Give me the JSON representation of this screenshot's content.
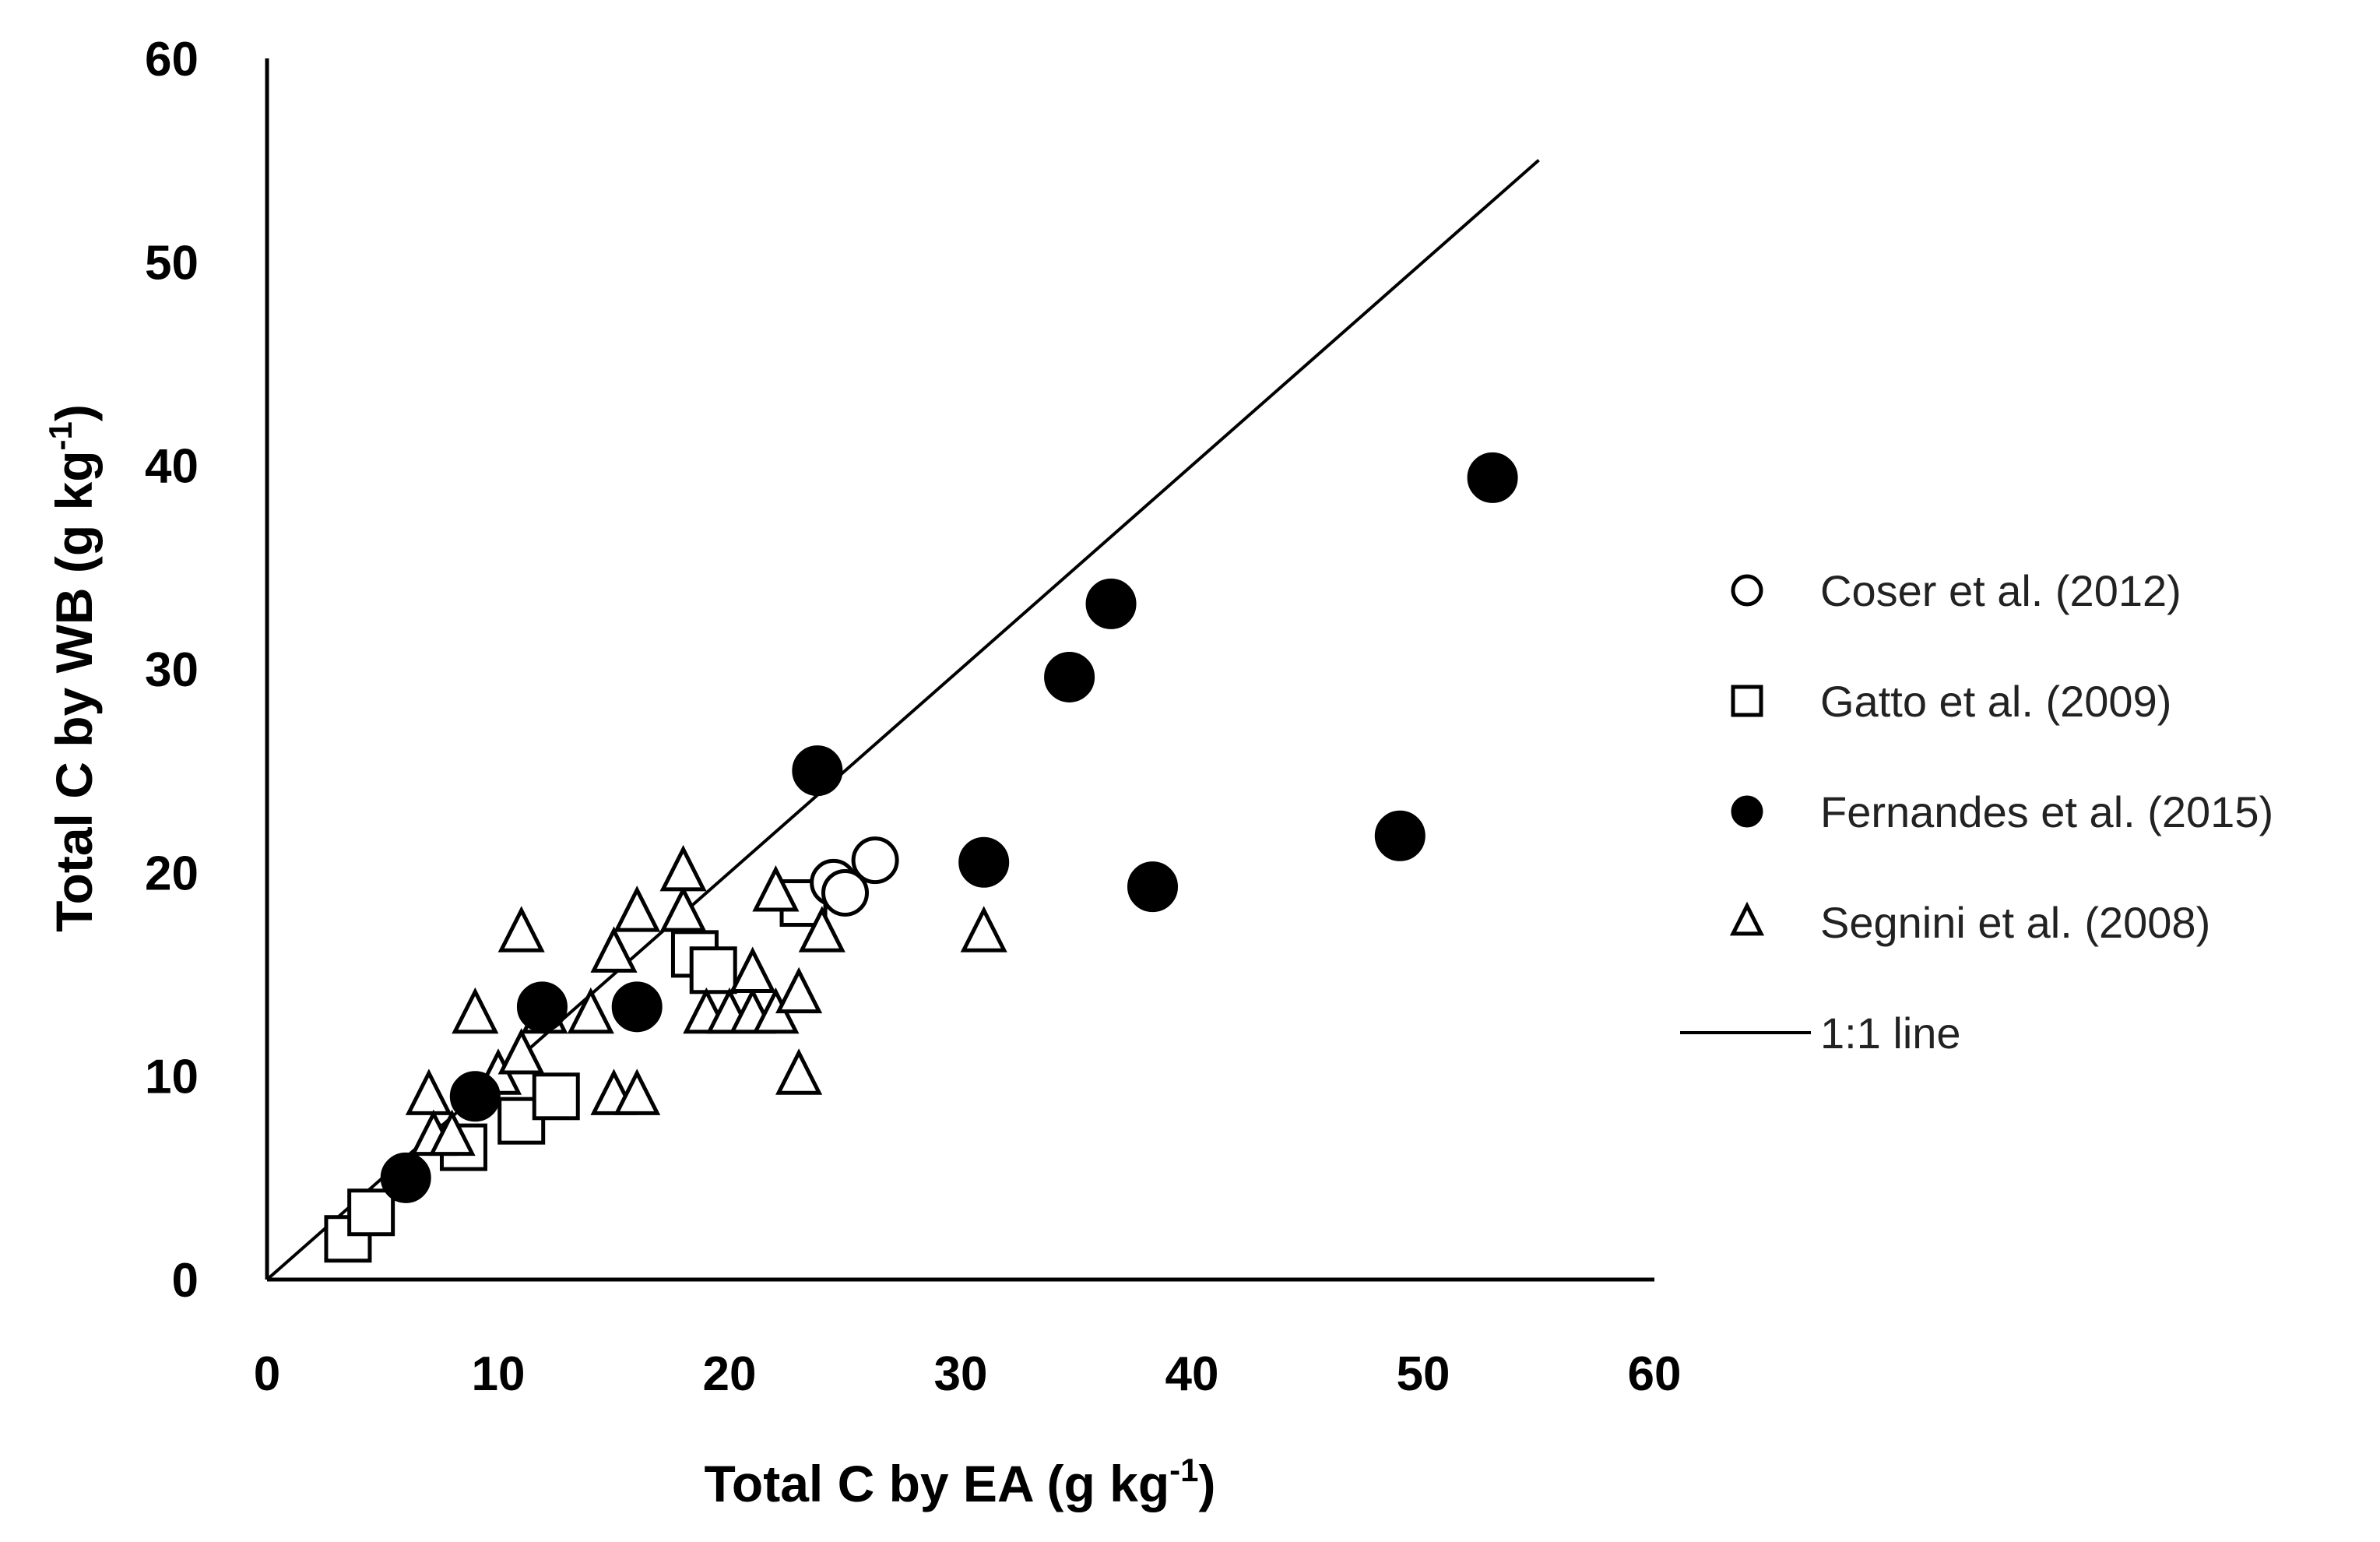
{
  "chart_data": {
    "type": "scatter",
    "title": "",
    "xlabel": "Total C by EA (g kg",
    "xlabel_superscript": "-1",
    "xlabel_suffix": ")",
    "ylabel": "Total C by WB (g kg",
    "ylabel_superscript": "-1",
    "ylabel_suffix": ")",
    "xlim": [
      0,
      60
    ],
    "ylim": [
      0,
      60
    ],
    "xticks": [
      "0",
      "10",
      "20",
      "30",
      "40",
      "50",
      "60"
    ],
    "yticks": [
      "0",
      "10",
      "20",
      "30",
      "40",
      "50",
      "60"
    ],
    "grid": false,
    "legend_position": "right",
    "series": [
      {
        "name": "Coser et al. (2012)",
        "marker": "open-circle",
        "points": [
          [
            24.5,
            19.5
          ],
          [
            25,
            19
          ],
          [
            26.3,
            20.6
          ]
        ]
      },
      {
        "name": "Gatto et al. (2009)",
        "marker": "open-square",
        "points": [
          [
            3.5,
            2
          ],
          [
            4.5,
            3.3
          ],
          [
            8.5,
            6.5
          ],
          [
            11,
            7.8
          ],
          [
            12.5,
            9
          ],
          [
            18.5,
            16
          ],
          [
            19.3,
            15.2
          ],
          [
            23.2,
            18.5
          ]
        ]
      },
      {
        "name": "Fernandes et al. (2015)",
        "marker": "filled-circle",
        "points": [
          [
            6,
            5
          ],
          [
            9,
            9
          ],
          [
            11.9,
            13.4
          ],
          [
            16,
            13.4
          ],
          [
            23.8,
            25
          ],
          [
            31,
            20.5
          ],
          [
            34.7,
            29.6
          ],
          [
            36.5,
            33.2
          ],
          [
            38.3,
            19.3
          ],
          [
            49,
            21.8
          ],
          [
            53,
            39.4
          ]
        ]
      },
      {
        "name": "Segnini et al. (2008)",
        "marker": "open-triangle",
        "points": [
          [
            7,
            9
          ],
          [
            7.2,
            7
          ],
          [
            8,
            7
          ],
          [
            9,
            13
          ],
          [
            10,
            10
          ],
          [
            11,
            11
          ],
          [
            11,
            17
          ],
          [
            12,
            13
          ],
          [
            14,
            13
          ],
          [
            15,
            9
          ],
          [
            15,
            16
          ],
          [
            16,
            9
          ],
          [
            16,
            18
          ],
          [
            18,
            18
          ],
          [
            18,
            20
          ],
          [
            19,
            13
          ],
          [
            20,
            13
          ],
          [
            21,
            13
          ],
          [
            21,
            15
          ],
          [
            22,
            13
          ],
          [
            22,
            19
          ],
          [
            23,
            10
          ],
          [
            23,
            14
          ],
          [
            24,
            17
          ],
          [
            31,
            17
          ]
        ]
      }
    ],
    "reference_line": {
      "name": "1:1 line",
      "from": [
        0,
        0
      ],
      "to": [
        55,
        55
      ]
    }
  }
}
